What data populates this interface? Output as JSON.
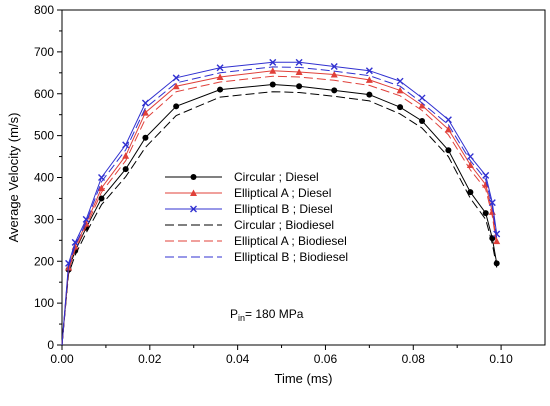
{
  "chart_data": {
    "type": "line",
    "xlabel": "Time (ms)",
    "ylabel": "Average Velocity (m/s)",
    "xlim": [
      0,
      0.11
    ],
    "ylim": [
      0,
      800
    ],
    "x_ticks": [
      "0.00",
      "0.02",
      "0.04",
      "0.06",
      "0.08",
      "0.10"
    ],
    "x_tick_values": [
      0,
      0.02,
      0.04,
      0.06,
      0.08,
      0.1
    ],
    "y_ticks": [
      "0",
      "100",
      "200",
      "300",
      "400",
      "500",
      "600",
      "700",
      "800"
    ],
    "y_tick_values": [
      0,
      100,
      200,
      300,
      400,
      500,
      600,
      700,
      800
    ],
    "grid": false,
    "legend_position": "center-left",
    "annotation": {
      "main": "P",
      "sub": "in",
      "rest": "= 180 MPa"
    },
    "series": [
      {
        "name": "Circular ; Diesel",
        "color": "#000000",
        "style": "solid",
        "marker": "circle",
        "x": [
          0,
          0.0015,
          0.003,
          0.0055,
          0.009,
          0.0145,
          0.019,
          0.026,
          0.036,
          0.048,
          0.054,
          0.062,
          0.07,
          0.077,
          0.082,
          0.088,
          0.093,
          0.0965,
          0.098,
          0.099
        ],
        "y": [
          0,
          180,
          225,
          280,
          350,
          420,
          495,
          570,
          610,
          622,
          618,
          608,
          598,
          568,
          535,
          465,
          365,
          315,
          255,
          195
        ]
      },
      {
        "name": "Elliptical A ; Diesel",
        "color": "#e0403a",
        "style": "solid",
        "marker": "triangle",
        "x": [
          0,
          0.0015,
          0.003,
          0.0055,
          0.009,
          0.0145,
          0.019,
          0.026,
          0.036,
          0.048,
          0.054,
          0.062,
          0.07,
          0.077,
          0.082,
          0.088,
          0.093,
          0.0965,
          0.098,
          0.099
        ],
        "y": [
          0,
          185,
          235,
          290,
          375,
          452,
          555,
          618,
          640,
          655,
          652,
          646,
          633,
          608,
          572,
          515,
          430,
          383,
          318,
          248
        ]
      },
      {
        "name": "Elliptical B ; Diesel",
        "color": "#3030d0",
        "style": "solid",
        "marker": "x",
        "x": [
          0,
          0.0015,
          0.003,
          0.0055,
          0.009,
          0.0145,
          0.019,
          0.026,
          0.036,
          0.048,
          0.054,
          0.062,
          0.07,
          0.077,
          0.082,
          0.088,
          0.093,
          0.0965,
          0.098,
          0.099
        ],
        "y": [
          0,
          195,
          245,
          300,
          400,
          478,
          578,
          638,
          662,
          675,
          675,
          665,
          655,
          630,
          590,
          538,
          450,
          405,
          340,
          265
        ]
      },
      {
        "name": "Circular ; Biodiesel",
        "color": "#000000",
        "style": "dash",
        "marker": "none",
        "x": [
          0,
          0.0015,
          0.003,
          0.0055,
          0.009,
          0.0145,
          0.019,
          0.026,
          0.036,
          0.048,
          0.054,
          0.062,
          0.07,
          0.077,
          0.082,
          0.088,
          0.093,
          0.0965,
          0.098,
          0.099
        ],
        "y": [
          0,
          170,
          215,
          268,
          335,
          402,
          472,
          548,
          592,
          605,
          603,
          594,
          583,
          552,
          518,
          450,
          350,
          300,
          242,
          185
        ]
      },
      {
        "name": "Elliptical A ; Biodiesel",
        "color": "#e0403a",
        "style": "dash",
        "marker": "none",
        "x": [
          0,
          0.0015,
          0.003,
          0.0055,
          0.009,
          0.0145,
          0.019,
          0.026,
          0.036,
          0.048,
          0.054,
          0.062,
          0.07,
          0.077,
          0.082,
          0.088,
          0.093,
          0.0965,
          0.098,
          0.099
        ],
        "y": [
          0,
          178,
          228,
          283,
          365,
          440,
          540,
          605,
          628,
          642,
          640,
          632,
          620,
          595,
          560,
          502,
          418,
          372,
          308,
          238
        ]
      },
      {
        "name": "Elliptical B ; Biodiesel",
        "color": "#3030d0",
        "style": "dash",
        "marker": "none",
        "x": [
          0,
          0.0015,
          0.003,
          0.0055,
          0.009,
          0.0145,
          0.019,
          0.026,
          0.036,
          0.048,
          0.054,
          0.062,
          0.07,
          0.077,
          0.082,
          0.088,
          0.093,
          0.0965,
          0.098,
          0.099
        ],
        "y": [
          0,
          188,
          238,
          293,
          390,
          466,
          566,
          626,
          650,
          664,
          663,
          654,
          643,
          618,
          578,
          526,
          440,
          395,
          330,
          256
        ]
      }
    ]
  }
}
